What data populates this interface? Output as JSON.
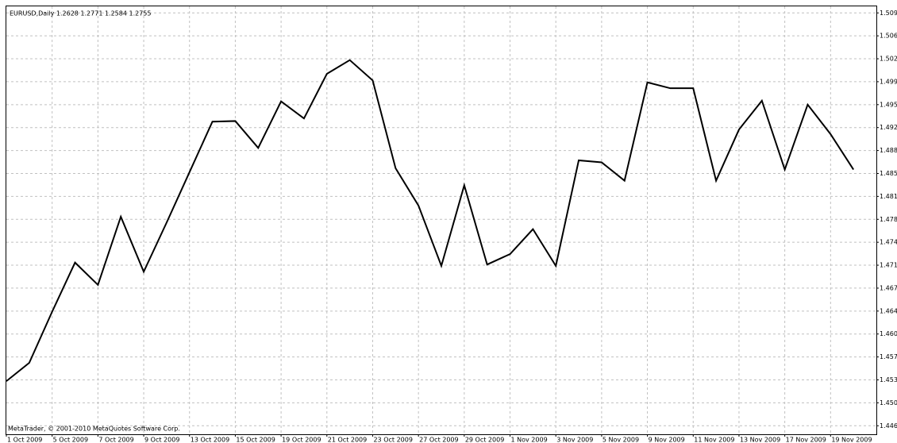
{
  "chart_data": {
    "type": "line",
    "title": "EURUSD,Daily  1.2628 1.2771 1.2584 1.2755",
    "footer": "MetaTrader, © 2001-2010 MetaQuotes Software Corp.",
    "x": [
      "1 Oct 2009",
      null,
      "5 Oct 2009",
      null,
      "7 Oct 2009",
      null,
      "9 Oct 2009",
      null,
      "13 Oct 2009",
      null,
      "15 Oct 2009",
      null,
      "19 Oct 2009",
      null,
      "21 Oct 2009",
      null,
      "23 Oct 2009",
      null,
      "27 Oct 2009",
      null,
      "29 Oct 2009",
      null,
      "1 Nov 2009",
      null,
      "3 Nov 2009",
      null,
      "5 Nov 2009",
      null,
      "9 Nov 2009",
      null,
      "11 Nov 2009",
      null,
      "13 Nov 2009",
      null,
      "17 Nov 2009",
      null,
      "19 Nov 2009",
      null
    ],
    "series": [
      {
        "name": "EURUSD",
        "color": "#000000",
        "values": [
          1.4533,
          1.4561,
          1.4639,
          1.4714,
          1.468,
          1.4784,
          1.47,
          1.4775,
          1.4852,
          1.4929,
          1.493,
          1.4889,
          1.496,
          1.4934,
          1.5002,
          1.5023,
          1.4992,
          1.4858,
          1.4801,
          1.4709,
          1.4832,
          1.4711,
          1.4727,
          1.4765,
          1.4709,
          1.487,
          1.4867,
          1.4839,
          1.4989,
          1.498,
          1.498,
          1.4839,
          1.4917,
          1.4961,
          1.4856,
          1.4955,
          1.491,
          1.4856
        ]
      }
    ],
    "ylim": [
      1.4452,
      1.5105
    ],
    "yticks": [
      1.5095,
      {
        "value": 1.506,
        "label": "1.5060"
      },
      1.5025,
      {
        "value": 1.499,
        "label": "1.4990"
      },
      1.4955,
      {
        "value": 1.492,
        "label": "1.4920"
      },
      1.4885,
      {
        "value": 1.485,
        "label": "1.4850"
      },
      1.4815,
      {
        "value": 1.478,
        "label": "1.4780"
      },
      1.4745,
      {
        "value": 1.471,
        "label": "1.4710"
      },
      1.4675,
      {
        "value": 1.464,
        "label": "1.4640"
      },
      1.4605,
      {
        "value": 1.457,
        "label": "1.4570"
      },
      1.4535,
      {
        "value": 1.45,
        "label": "1.4500"
      },
      1.4465
    ],
    "grid": true
  }
}
